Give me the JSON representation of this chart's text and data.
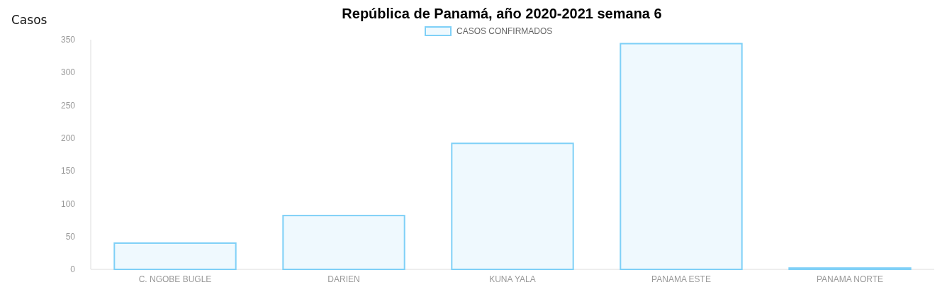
{
  "chart_data": {
    "type": "bar",
    "title": "República de Panamá, año 2020-2021 semana 6",
    "ylabel": "Casos",
    "categories": [
      "C. NGOBE BUGLE",
      "DARIEN",
      "KUNA YALA",
      "PANAMA ESTE",
      "PANAMA NORTE"
    ],
    "series": [
      {
        "name": "CASOS CONFIRMADOS",
        "color": "#7fd0f7",
        "values": [
          40,
          82,
          192,
          344,
          2
        ]
      }
    ],
    "ylim": [
      0,
      350
    ],
    "yticks": [
      0,
      50,
      100,
      150,
      200,
      250,
      300,
      350
    ],
    "grid": false,
    "legend": "top"
  }
}
